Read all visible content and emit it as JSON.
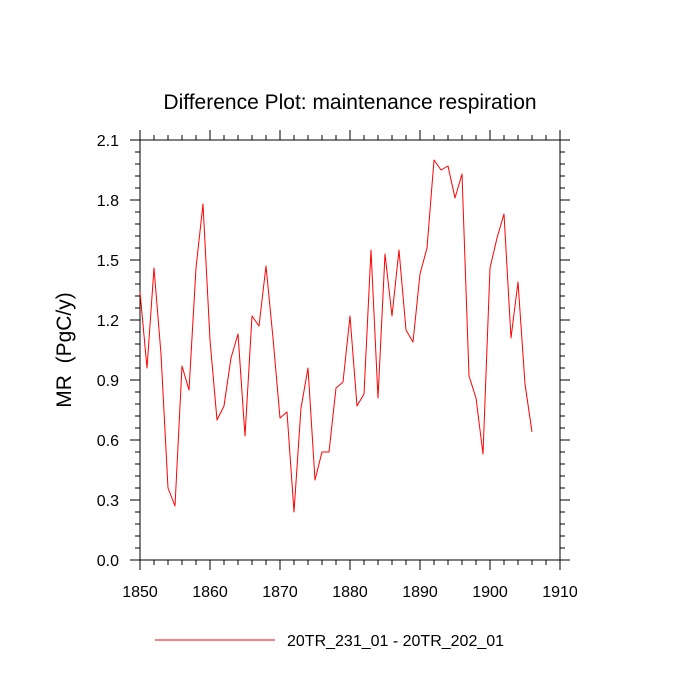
{
  "chart_data": {
    "type": "line",
    "title": "Difference Plot: maintenance respiration",
    "xlabel": "",
    "ylabel": "MR  (PgC/y)",
    "xlim": [
      1850,
      1910
    ],
    "ylim": [
      0.0,
      2.1
    ],
    "x_ticks": [
      1850,
      1860,
      1870,
      1880,
      1890,
      1900,
      1910
    ],
    "x_tick_labels": [
      "1850",
      "1860",
      "1870",
      "1880",
      "1890",
      "1900",
      "1910"
    ],
    "y_ticks": [
      0.0,
      0.3,
      0.6,
      0.9,
      1.2,
      1.5,
      1.8,
      2.1
    ],
    "y_tick_labels": [
      "0.0",
      "0.3",
      "0.6",
      "0.9",
      "1.2",
      "1.5",
      "1.8",
      "2.1"
    ],
    "grid": false,
    "legend_position": "bottom-center",
    "series": [
      {
        "name": "20TR_231_01 - 20TR_202_01",
        "color": "#ff0000",
        "x": [
          1850,
          1851,
          1852,
          1853,
          1854,
          1855,
          1856,
          1857,
          1858,
          1859,
          1860,
          1861,
          1862,
          1863,
          1864,
          1865,
          1866,
          1867,
          1868,
          1869,
          1870,
          1871,
          1872,
          1873,
          1874,
          1875,
          1876,
          1877,
          1878,
          1879,
          1880,
          1881,
          1882,
          1883,
          1884,
          1885,
          1886,
          1887,
          1888,
          1889,
          1890,
          1891,
          1892,
          1893,
          1894,
          1895,
          1896,
          1897,
          1898,
          1899,
          1900,
          1901,
          1902,
          1903,
          1904,
          1905,
          1906
        ],
        "values": [
          1.34,
          0.96,
          1.46,
          1.03,
          0.36,
          0.27,
          0.97,
          0.85,
          1.46,
          1.78,
          1.1,
          0.7,
          0.77,
          1.01,
          1.13,
          0.62,
          1.22,
          1.17,
          1.47,
          1.11,
          0.71,
          0.74,
          0.24,
          0.76,
          0.96,
          0.4,
          0.54,
          0.54,
          0.86,
          0.89,
          1.22,
          0.77,
          0.83,
          1.55,
          0.81,
          1.53,
          1.22,
          1.55,
          1.15,
          1.09,
          1.43,
          1.56,
          2.0,
          1.95,
          1.97,
          1.81,
          1.93,
          0.92,
          0.81,
          0.53,
          1.46,
          1.61,
          1.73,
          1.11,
          1.39,
          0.88,
          0.64
        ]
      }
    ]
  }
}
